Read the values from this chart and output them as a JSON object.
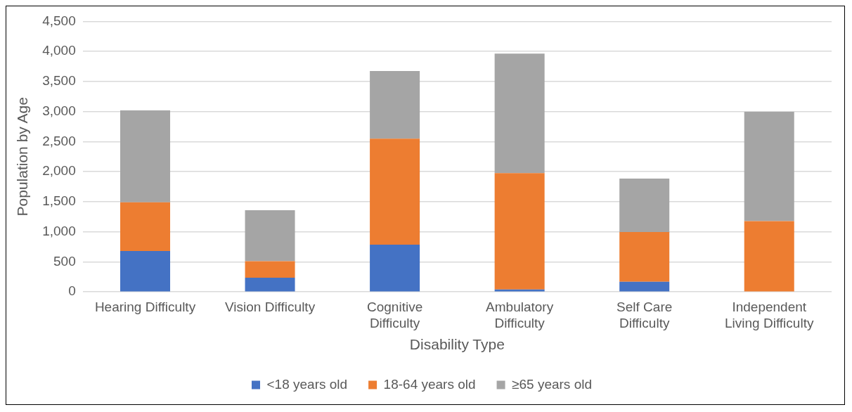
{
  "chart_data": {
    "type": "bar",
    "stacked": true,
    "xlabel": "Disability Type",
    "ylabel": "Population by Age",
    "categories": [
      "Hearing Difficulty",
      "Vision Difficulty",
      "Cognitive Difficulty",
      "Ambulatory Difficulty",
      "Self Care Difficulty",
      "Independent Living Difficulty"
    ],
    "series": [
      {
        "name": "<18 years old",
        "color": "#4472c4",
        "values": [
          680,
          235,
          785,
          40,
          170,
          0
        ]
      },
      {
        "name": "18-64 years old",
        "color": "#ed7d31",
        "values": [
          810,
          275,
          1765,
          1935,
          825,
          1177
        ]
      },
      {
        "name": "≥65 years old",
        "color": "#a5a5a5",
        "values": [
          1530,
          850,
          1125,
          1990,
          890,
          1820
        ]
      }
    ],
    "ylim": [
      0,
      4500
    ],
    "yticks": [
      {
        "value": 0,
        "label": "0"
      },
      {
        "value": 500,
        "label": "500"
      },
      {
        "value": 1000,
        "label": "1,000"
      },
      {
        "value": 1500,
        "label": "1,500"
      },
      {
        "value": 2000,
        "label": "2,000"
      },
      {
        "value": 2500,
        "label": "2,500"
      },
      {
        "value": 3000,
        "label": "3,000"
      },
      {
        "value": 3500,
        "label": "3,500"
      },
      {
        "value": 4000,
        "label": "4,000"
      },
      {
        "value": 4500,
        "label": "4,500"
      }
    ],
    "grid": "y",
    "legend": "bottom"
  }
}
